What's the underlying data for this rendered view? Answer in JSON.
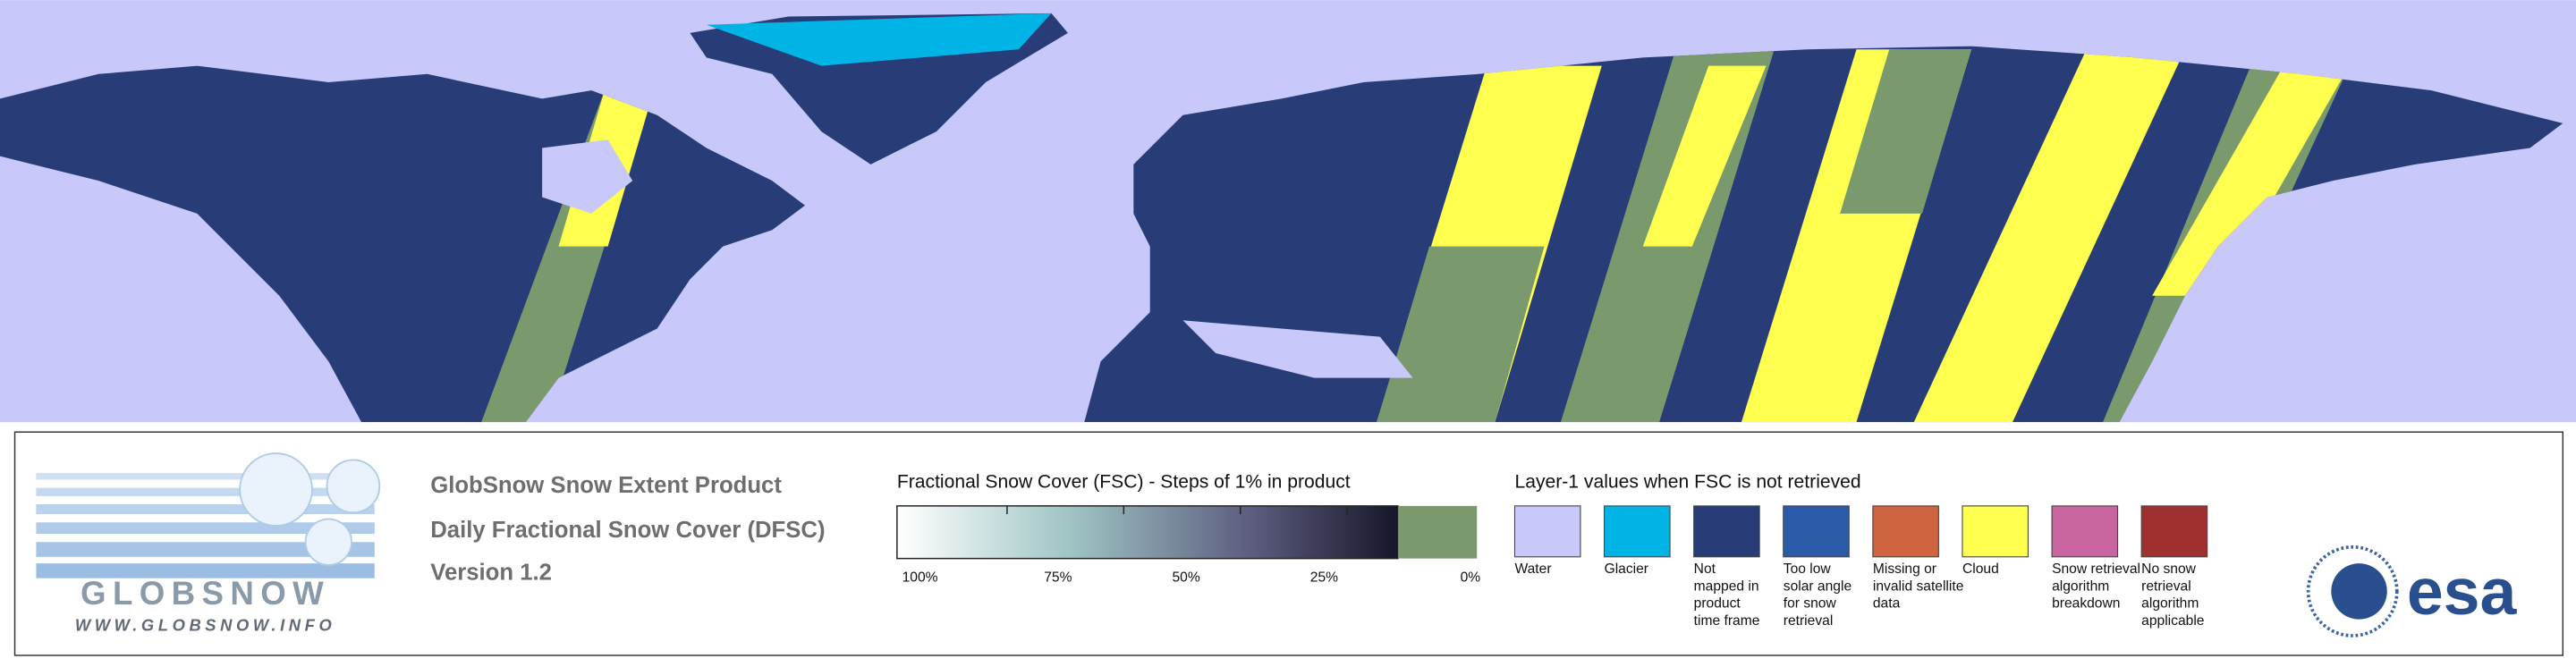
{
  "logo": {
    "name": "GLOBSNOW",
    "url": "WWW.GLOBSNOW.INFO"
  },
  "title": {
    "lines": [
      "GlobSnow Snow Extent Product",
      "Daily Fractional Snow Cover (DFSC)",
      "Version 1.2"
    ]
  },
  "colorbar": {
    "title": "Fractional Snow Cover (FSC) - Steps of 1% in product",
    "tick_labels": [
      "100%",
      "75%",
      "50%",
      "25%",
      "0%"
    ]
  },
  "layer1": {
    "title": "Layer-1 values when FSC is not retrieved",
    "items": [
      {
        "label": [
          "Water"
        ],
        "color": "#c8c8fa"
      },
      {
        "label": [
          "Glacier"
        ],
        "color": "#00b4e6"
      },
      {
        "label": [
          "Not",
          "mapped in",
          "product",
          "time frame"
        ],
        "color": "#283c78"
      },
      {
        "label": [
          "Too low",
          "solar angle",
          "for snow",
          "retrieval"
        ],
        "color": "#2a5aa8"
      },
      {
        "label": [
          "Missing or",
          "invalid satellite",
          "data"
        ],
        "color": "#d06440"
      },
      {
        "label": [
          "Cloud"
        ],
        "color": "#ffff50"
      },
      {
        "label": [
          "Snow retrieval",
          "algorithm",
          "breakdown"
        ],
        "color": "#c864a0"
      },
      {
        "label": [
          "No snow",
          "retrieval",
          "algorithm",
          "applicable"
        ],
        "color": "#a03030"
      }
    ]
  },
  "esa": "esa"
}
